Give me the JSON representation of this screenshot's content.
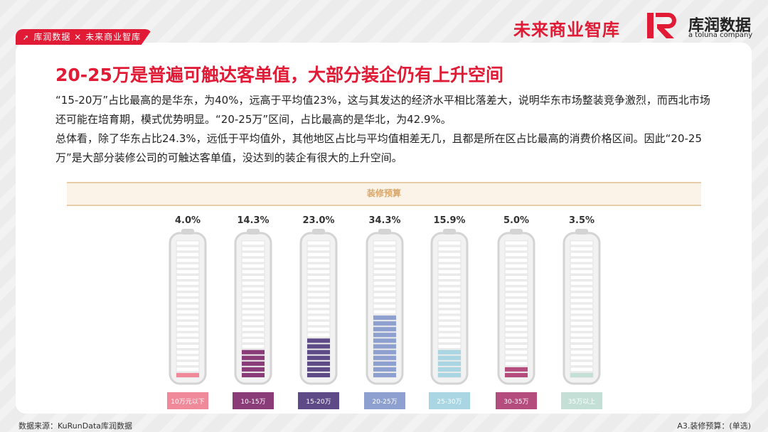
{
  "header": {
    "tag_text": "库润数据 × 未来商业智库",
    "logo_left": "未来商业智库",
    "logo_right_cn": "库润数据",
    "logo_right_en": "a toluna company"
  },
  "title": "20-25万是普遍可触达客单值，大部分装企仍有上升空间",
  "paragraphs": [
    "“15-20万”占比最高的是华东，为40%，远高于平均值23%，这与其发达的经济水平相比落差大，说明华东市场整装竞争激烈，而西北市场还可能在培育期，模式优势明显。“20-25万”区间，占比最高的是华北，为42.9%。",
    "总体看，除了华东占比24.3%，远低于平均值外，其他地区占比与平均值相差无几，且都是所在区占比最高的消费价格区间。因此“20-25万”是大部分装修公司的可触达客单值，没达到的装企有很大的上升空间。"
  ],
  "chart_data": {
    "type": "bar",
    "title": "装修预算",
    "categories": [
      "10万元以下",
      "10-15万",
      "15-20万",
      "20-25万",
      "25-30万",
      "30-35万",
      "35万以上"
    ],
    "values": [
      4.0,
      14.3,
      23.0,
      34.3,
      15.9,
      5.0,
      3.5
    ],
    "value_labels": [
      "4.0%",
      "14.3%",
      "23.0%",
      "34.3%",
      "15.9%",
      "5.0%",
      "3.5%"
    ],
    "colors": [
      "#f08a9a",
      "#8a3c78",
      "#5e4a86",
      "#8ea0cf",
      "#a9d6e2",
      "#b44d7e",
      "#c4e0d6"
    ],
    "ylim": [
      0,
      100
    ],
    "unit": "%"
  },
  "footer": {
    "source": "数据来源：KuRunData库润数据",
    "question": "A3.装修预算：(单选)"
  }
}
